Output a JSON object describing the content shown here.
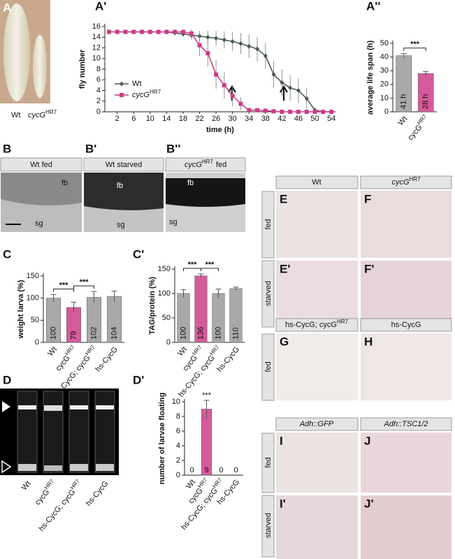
{
  "letters": {
    "A": "A",
    "A1": "A'",
    "A2": "A''",
    "B": "B",
    "B1": "B'",
    "B2": "B''",
    "C": "C",
    "C1": "C'",
    "D": "D",
    "D1": "D'",
    "E": "E",
    "E1": "E'",
    "F": "F",
    "F1": "F'",
    "G": "G",
    "H": "H",
    "I": "I",
    "I1": "I'",
    "J": "J",
    "J1": "J'"
  },
  "texts": {
    "wt": "Wt",
    "cycg": "cycG",
    "hr7": "HR7",
    "wt_fed": "Wt fed",
    "wt_starved": "Wt starved",
    "fed": "fed",
    "starved": "starved",
    "fb": "fb",
    "sg": "sg",
    "hs_cycg_cycg": "hs-CycG; cycG",
    "hs_cycg": "hs-CycG",
    "adh_gfp": "Adh::GFP",
    "adh_tsc": "Adh::TSC1/2"
  },
  "chart_data": [
    {
      "type": "line",
      "ylabel": "fly number",
      "xlabel": "time (h)",
      "x": [
        0,
        2,
        4,
        6,
        8,
        10,
        12,
        14,
        16,
        18,
        20,
        22,
        24,
        26,
        28,
        30,
        32,
        34,
        36,
        38,
        40,
        42,
        44,
        46,
        48,
        50,
        52,
        54
      ],
      "xlim": [
        -1,
        55
      ],
      "xticks": [
        2,
        6,
        10,
        14,
        18,
        22,
        26,
        30,
        34,
        38,
        42,
        46,
        50,
        54
      ],
      "ylim": [
        0,
        16
      ],
      "yticks": [
        0,
        2,
        4,
        6,
        8,
        10,
        12,
        14,
        16
      ],
      "legend": "lower left",
      "series": [
        {
          "name": "Wt",
          "color": "#4b5b52",
          "marker": "diamond",
          "values": [
            15,
            15,
            15,
            15,
            15,
            15,
            15,
            15,
            14.8,
            14.6,
            14.4,
            14.2,
            14,
            13.8,
            13.5,
            13.2,
            12.8,
            12.3,
            11.8,
            10.5,
            7,
            5.5,
            4.5,
            4,
            2.5,
            0.3,
            0,
            0
          ],
          "errors": [
            0.3,
            0.3,
            0.3,
            0.3,
            0.3,
            0.3,
            0.3,
            0.3,
            0.4,
            0.6,
            0.8,
            1,
            1.2,
            1.4,
            1.6,
            1.8,
            2,
            2.2,
            2.3,
            2.4,
            2.5,
            2.5,
            2.4,
            2.3,
            2,
            0.5,
            0,
            0
          ]
        },
        {
          "name": "cycG",
          "name_superscript": "HR7",
          "color": "#cc3d86",
          "marker": "square",
          "values": [
            15,
            15,
            15,
            15,
            15,
            15,
            15,
            15,
            15,
            15,
            14.7,
            12.5,
            11,
            7,
            5,
            3,
            1.5,
            0.3,
            0.3,
            0.2,
            0.1,
            0,
            0,
            0,
            0,
            0,
            0,
            0
          ],
          "errors": [
            0.3,
            0.3,
            0.3,
            0.3,
            0.3,
            0.3,
            0.3,
            0.3,
            0.3,
            0.3,
            0.8,
            2,
            2.5,
            2.7,
            2.5,
            2,
            1.2,
            0.5,
            0.4,
            0.3,
            0.2,
            0,
            0,
            0,
            0,
            0,
            0,
            0
          ]
        }
      ]
    },
    {
      "type": "bar",
      "ylabel": "average life span (h)",
      "categories": [
        "Wt",
        "cycG"
      ],
      "category_superscripts": [
        null,
        "HR7"
      ],
      "values": [
        41,
        28
      ],
      "value_labels": [
        "41 h",
        "28 h"
      ],
      "value_labels_vertical": true,
      "errors": [
        1.5,
        1.5
      ],
      "colors": [
        "#a9a9a9",
        "#d55a99"
      ],
      "ylim": [
        0,
        50
      ],
      "yticks": [
        0,
        10,
        20,
        30,
        40,
        50
      ],
      "significance": [
        {
          "pair": [
            0,
            1
          ],
          "label": "***"
        }
      ]
    },
    {
      "type": "bar",
      "ylabel": "weight larva (%)",
      "categories": [
        "Wt",
        "cycG",
        "hs-CycG; cycG",
        "hs-CycG"
      ],
      "category_superscripts": [
        null,
        "HR7",
        "HR7",
        null
      ],
      "values": [
        100,
        79,
        102,
        104
      ],
      "value_labels_vertical": true,
      "errors": [
        8,
        12,
        13,
        12
      ],
      "colors": [
        "#a9a9a9",
        "#d55a99",
        "#a9a9a9",
        "#a9a9a9"
      ],
      "ylim": [
        0,
        150
      ],
      "yticks": [
        0,
        50,
        100,
        150
      ],
      "significance": [
        {
          "pair": [
            0,
            1
          ],
          "label": "***"
        },
        {
          "pair": [
            1,
            2
          ],
          "label": "***"
        }
      ]
    },
    {
      "type": "bar",
      "ylabel": "TAG/protein (%)",
      "categories": [
        "Wt",
        "cycG",
        "hs-CycG; cycG",
        "hs-CycG"
      ],
      "category_superscripts": [
        null,
        "HR7",
        "HR7",
        null
      ],
      "values": [
        100,
        136,
        100,
        110
      ],
      "value_labels_vertical": true,
      "errors": [
        8,
        4,
        9,
        3
      ],
      "colors": [
        "#a9a9a9",
        "#d55a99",
        "#a9a9a9",
        "#a9a9a9"
      ],
      "ylim": [
        0,
        150
      ],
      "yticks": [
        0,
        50,
        100,
        150
      ],
      "significance": [
        {
          "pair": [
            0,
            1
          ],
          "label": "***"
        },
        {
          "pair": [
            1,
            2
          ],
          "label": "***"
        }
      ]
    },
    {
      "type": "bar",
      "ylabel": "number of larvae floating",
      "categories": [
        "Wt",
        "cycG",
        "hs-CycG; cycG",
        "hs-CycG"
      ],
      "category_superscripts": [
        null,
        "HR7",
        "HR7",
        null
      ],
      "values": [
        0,
        9,
        0,
        0
      ],
      "value_labels_vertical": false,
      "errors": [
        0,
        1.2,
        0,
        0
      ],
      "colors": [
        "#a9a9a9",
        "#d55a99",
        "#a9a9a9",
        "#a9a9a9"
      ],
      "ylim": [
        0,
        10
      ],
      "yticks": [
        0,
        2,
        4,
        6,
        8,
        10
      ],
      "annotations": [
        {
          "index": 1,
          "label": "***"
        }
      ]
    }
  ]
}
